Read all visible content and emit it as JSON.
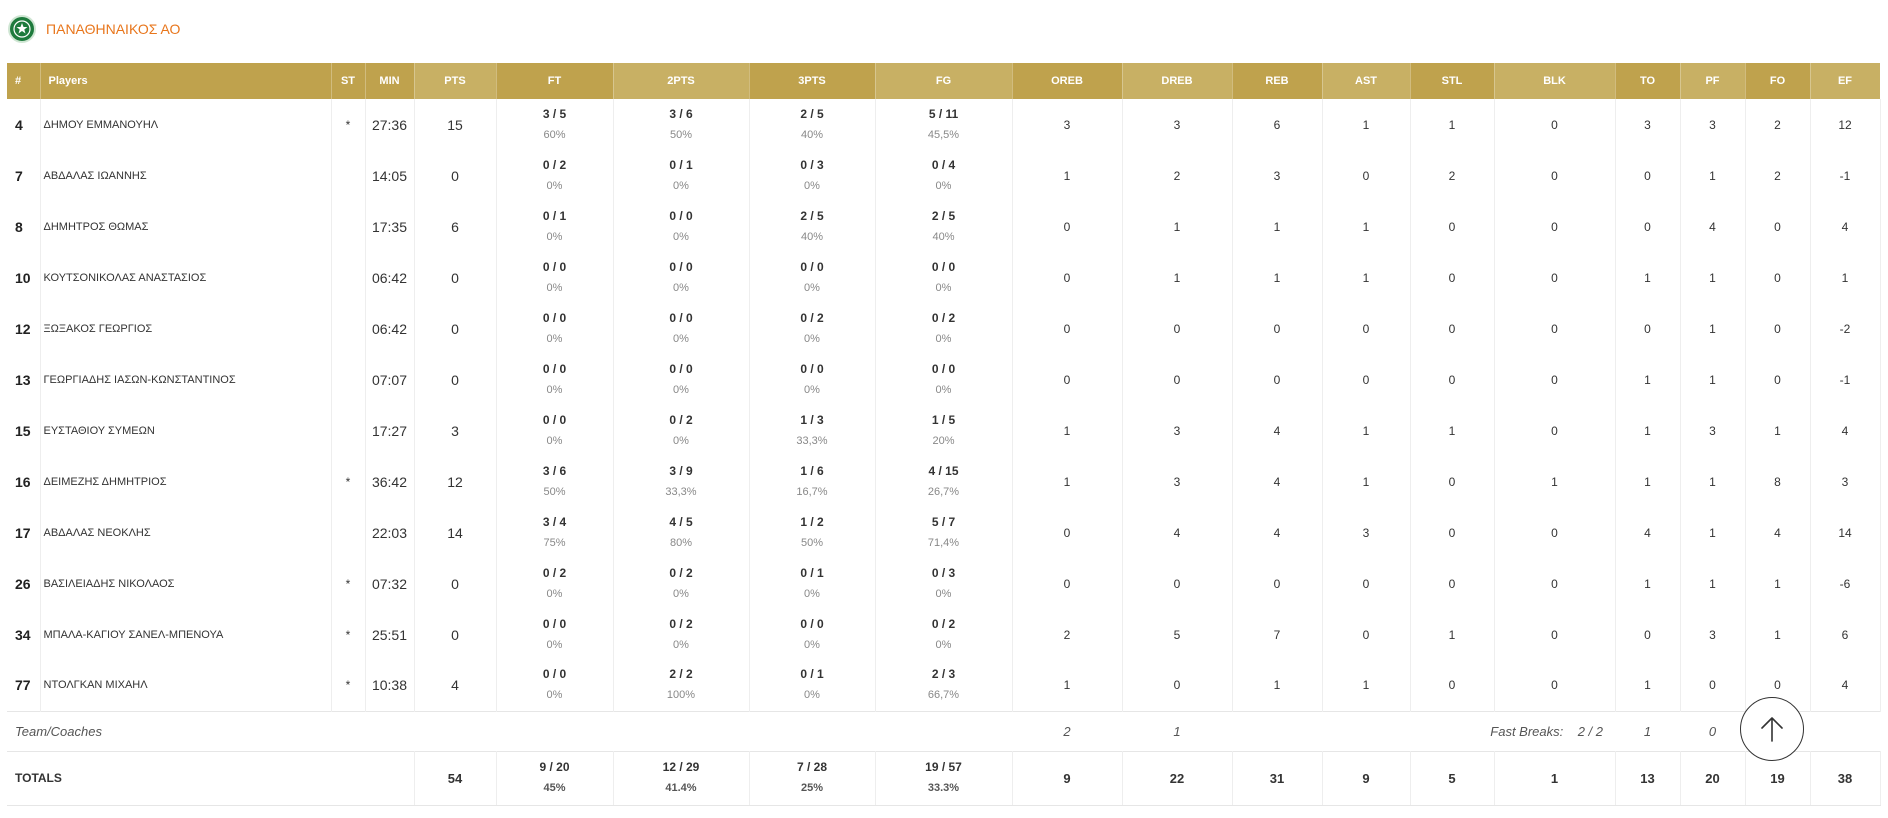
{
  "team": {
    "name": "ΠΑΝΑΘΗΝΑΙΚΟΣ ΑΟ",
    "logo_icon": "team-crest-icon"
  },
  "colors": {
    "header_gold": "#bfa24d",
    "header_gold_light": "#c8b064",
    "team_name": "#e8761c"
  },
  "columns": [
    "#",
    "Players",
    "ST",
    "MIN",
    "PTS",
    "FT",
    "2PTS",
    "3PTS",
    "FG",
    "OREB",
    "DREB",
    "REB",
    "AST",
    "STL",
    "BLK",
    "TO",
    "PF",
    "FO",
    "EF"
  ],
  "players": [
    {
      "num": "4",
      "name": "ΔΗΜΟΥ ΕΜΜΑΝΟΥΗΛ",
      "st": "*",
      "min": "27:36",
      "pts": "15",
      "ft": "3 / 5",
      "ft_pct": "60%",
      "p2": "3 / 6",
      "p2_pct": "50%",
      "p3": "2 / 5",
      "p3_pct": "40%",
      "fg": "5 / 11",
      "fg_pct": "45,5%",
      "oreb": "3",
      "dreb": "3",
      "reb": "6",
      "ast": "1",
      "stl": "1",
      "blk": "0",
      "to": "3",
      "pf": "3",
      "fo": "2",
      "ef": "12"
    },
    {
      "num": "7",
      "name": "ΑΒΔΑΛΑΣ ΙΩΑΝΝΗΣ",
      "st": "",
      "min": "14:05",
      "pts": "0",
      "ft": "0 / 2",
      "ft_pct": "0%",
      "p2": "0 / 1",
      "p2_pct": "0%",
      "p3": "0 / 3",
      "p3_pct": "0%",
      "fg": "0 / 4",
      "fg_pct": "0%",
      "oreb": "1",
      "dreb": "2",
      "reb": "3",
      "ast": "0",
      "stl": "2",
      "blk": "0",
      "to": "0",
      "pf": "1",
      "fo": "2",
      "ef": "-1"
    },
    {
      "num": "8",
      "name": "ΔΗΜΗΤΡΟΣ ΘΩΜΑΣ",
      "st": "",
      "min": "17:35",
      "pts": "6",
      "ft": "0 / 1",
      "ft_pct": "0%",
      "p2": "0 / 0",
      "p2_pct": "0%",
      "p3": "2 / 5",
      "p3_pct": "40%",
      "fg": "2 / 5",
      "fg_pct": "40%",
      "oreb": "0",
      "dreb": "1",
      "reb": "1",
      "ast": "1",
      "stl": "0",
      "blk": "0",
      "to": "0",
      "pf": "4",
      "fo": "0",
      "ef": "4"
    },
    {
      "num": "10",
      "name": "ΚΟΥΤΣΟΝΙΚΟΛΑΣ ΑΝΑΣΤΑΣΙΟΣ",
      "st": "",
      "min": "06:42",
      "pts": "0",
      "ft": "0 / 0",
      "ft_pct": "0%",
      "p2": "0 / 0",
      "p2_pct": "0%",
      "p3": "0 / 0",
      "p3_pct": "0%",
      "fg": "0 / 0",
      "fg_pct": "0%",
      "oreb": "0",
      "dreb": "1",
      "reb": "1",
      "ast": "1",
      "stl": "0",
      "blk": "0",
      "to": "1",
      "pf": "1",
      "fo": "0",
      "ef": "1"
    },
    {
      "num": "12",
      "name": "ΞΩΞΑΚΟΣ ΓΕΩΡΓΙΟΣ",
      "st": "",
      "min": "06:42",
      "pts": "0",
      "ft": "0 / 0",
      "ft_pct": "0%",
      "p2": "0 / 0",
      "p2_pct": "0%",
      "p3": "0 / 2",
      "p3_pct": "0%",
      "fg": "0 / 2",
      "fg_pct": "0%",
      "oreb": "0",
      "dreb": "0",
      "reb": "0",
      "ast": "0",
      "stl": "0",
      "blk": "0",
      "to": "0",
      "pf": "1",
      "fo": "0",
      "ef": "-2"
    },
    {
      "num": "13",
      "name": "ΓΕΩΡΓΙΑΔΗΣ ΙΑΣΩΝ-ΚΩΝΣΤΑΝΤΙΝΟΣ",
      "st": "",
      "min": "07:07",
      "pts": "0",
      "ft": "0 / 0",
      "ft_pct": "0%",
      "p2": "0 / 0",
      "p2_pct": "0%",
      "p3": "0 / 0",
      "p3_pct": "0%",
      "fg": "0 / 0",
      "fg_pct": "0%",
      "oreb": "0",
      "dreb": "0",
      "reb": "0",
      "ast": "0",
      "stl": "0",
      "blk": "0",
      "to": "1",
      "pf": "1",
      "fo": "0",
      "ef": "-1"
    },
    {
      "num": "15",
      "name": "ΕΥΣΤΑΘΙΟΥ ΣΥΜΕΩΝ",
      "st": "",
      "min": "17:27",
      "pts": "3",
      "ft": "0 / 0",
      "ft_pct": "0%",
      "p2": "0 / 2",
      "p2_pct": "0%",
      "p3": "1 / 3",
      "p3_pct": "33,3%",
      "fg": "1 / 5",
      "fg_pct": "20%",
      "oreb": "1",
      "dreb": "3",
      "reb": "4",
      "ast": "1",
      "stl": "1",
      "blk": "0",
      "to": "1",
      "pf": "3",
      "fo": "1",
      "ef": "4"
    },
    {
      "num": "16",
      "name": "ΔΕΙΜΕΖΗΣ ΔΗΜΗΤΡΙΟΣ",
      "st": "*",
      "min": "36:42",
      "pts": "12",
      "ft": "3 / 6",
      "ft_pct": "50%",
      "p2": "3 / 9",
      "p2_pct": "33,3%",
      "p3": "1 / 6",
      "p3_pct": "16,7%",
      "fg": "4 / 15",
      "fg_pct": "26,7%",
      "oreb": "1",
      "dreb": "3",
      "reb": "4",
      "ast": "1",
      "stl": "0",
      "blk": "1",
      "to": "1",
      "pf": "1",
      "fo": "8",
      "ef": "3"
    },
    {
      "num": "17",
      "name": "ΑΒΔΑΛΑΣ ΝΕΟΚΛΗΣ",
      "st": "",
      "min": "22:03",
      "pts": "14",
      "ft": "3 / 4",
      "ft_pct": "75%",
      "p2": "4 / 5",
      "p2_pct": "80%",
      "p3": "1 / 2",
      "p3_pct": "50%",
      "fg": "5 / 7",
      "fg_pct": "71,4%",
      "oreb": "0",
      "dreb": "4",
      "reb": "4",
      "ast": "3",
      "stl": "0",
      "blk": "0",
      "to": "4",
      "pf": "1",
      "fo": "4",
      "ef": "14"
    },
    {
      "num": "26",
      "name": "ΒΑΣΙΛΕΙΑΔΗΣ ΝΙΚΟΛΑΟΣ",
      "st": "*",
      "min": "07:32",
      "pts": "0",
      "ft": "0 / 2",
      "ft_pct": "0%",
      "p2": "0 / 2",
      "p2_pct": "0%",
      "p3": "0 / 1",
      "p3_pct": "0%",
      "fg": "0 / 3",
      "fg_pct": "0%",
      "oreb": "0",
      "dreb": "0",
      "reb": "0",
      "ast": "0",
      "stl": "0",
      "blk": "0",
      "to": "1",
      "pf": "1",
      "fo": "1",
      "ef": "-6"
    },
    {
      "num": "34",
      "name": "ΜΠΑΛΑ-ΚΑΓΙΟΥ ΣΑΝΕΛ-ΜΠΕΝΟΥΑ",
      "st": "*",
      "min": "25:51",
      "pts": "0",
      "ft": "0 / 0",
      "ft_pct": "0%",
      "p2": "0 / 2",
      "p2_pct": "0%",
      "p3": "0 / 0",
      "p3_pct": "0%",
      "fg": "0 / 2",
      "fg_pct": "0%",
      "oreb": "2",
      "dreb": "5",
      "reb": "7",
      "ast": "0",
      "stl": "1",
      "blk": "0",
      "to": "0",
      "pf": "3",
      "fo": "1",
      "ef": "6"
    },
    {
      "num": "77",
      "name": "ΝΤΟΛΓΚΑΝ ΜΙΧΑΗΛ",
      "st": "*",
      "min": "10:38",
      "pts": "4",
      "ft": "0 / 0",
      "ft_pct": "0%",
      "p2": "2 / 2",
      "p2_pct": "100%",
      "p3": "0 / 1",
      "p3_pct": "0%",
      "fg": "2 / 3",
      "fg_pct": "66,7%",
      "oreb": "1",
      "dreb": "0",
      "reb": "1",
      "ast": "1",
      "stl": "0",
      "blk": "0",
      "to": "1",
      "pf": "0",
      "fo": "0",
      "ef": "4"
    }
  ],
  "team_coaches": {
    "label": "Team/Coaches",
    "oreb": "2",
    "dreb": "1",
    "fast_breaks_label": "Fast Breaks:",
    "fast_breaks": "2 / 2",
    "to": "1",
    "pf": "0"
  },
  "totals": {
    "label": "TOTALS",
    "pts": "54",
    "ft": "9 / 20",
    "ft_pct": "45%",
    "p2": "12 / 29",
    "p2_pct": "41.4%",
    "p3": "7 / 28",
    "p3_pct": "25%",
    "fg": "19 / 57",
    "fg_pct": "33.3%",
    "oreb": "9",
    "dreb": "22",
    "reb": "31",
    "ast": "9",
    "stl": "5",
    "blk": "1",
    "to": "13",
    "pf": "20",
    "fo": "19",
    "ef": "38"
  },
  "scroll_top": {
    "icon": "arrow-up-icon"
  }
}
